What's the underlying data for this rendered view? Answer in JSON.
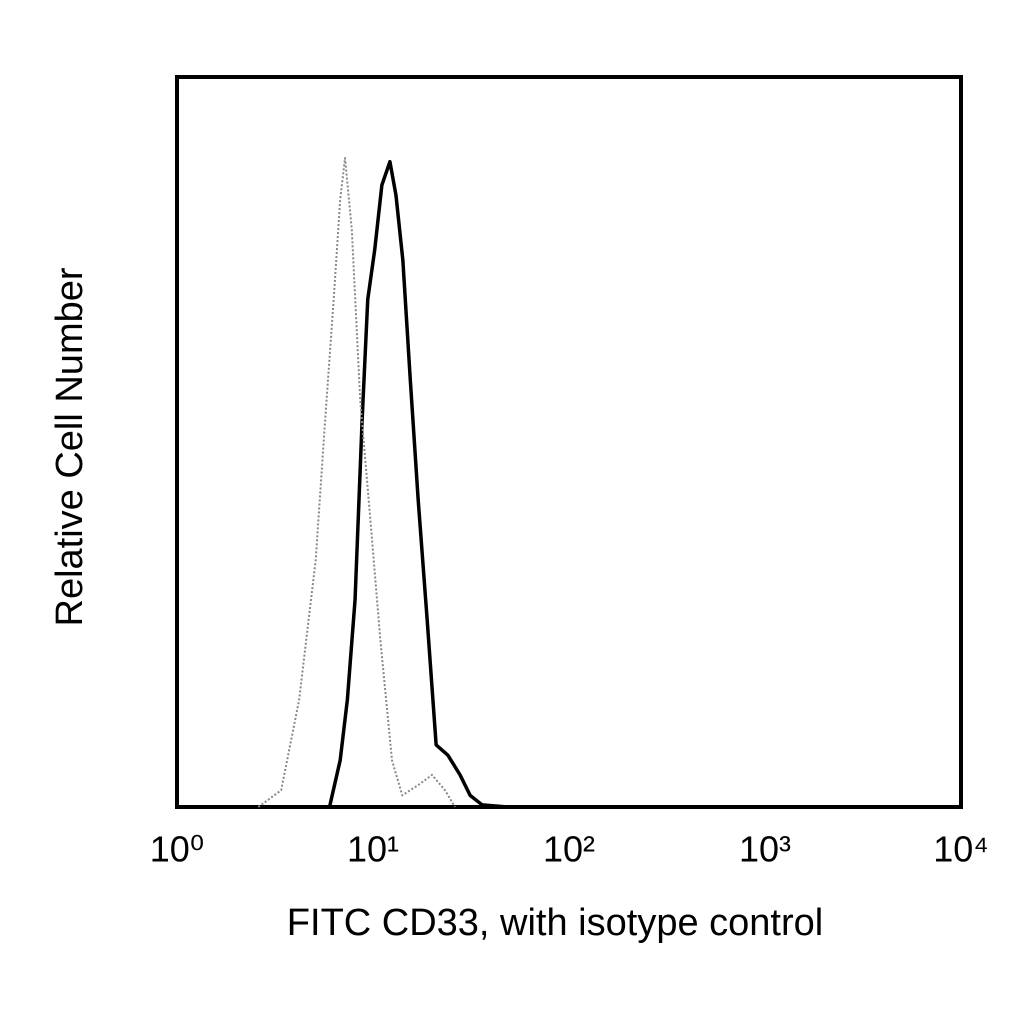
{
  "chart_data": {
    "type": "line",
    "xlabel": "FITC CD33, with isotype control",
    "ylabel": "Relative Cell Number",
    "log_x": true,
    "xlim": [
      1,
      10000
    ],
    "xticks": [
      {
        "value": 1,
        "label": "10⁰"
      },
      {
        "value": 10,
        "label": "10¹"
      },
      {
        "value": 100,
        "label": "10²"
      },
      {
        "value": 1000,
        "label": "10³"
      },
      {
        "value": 10000,
        "label": "10⁴"
      }
    ],
    "ylim": [
      0,
      100
    ],
    "grid": false,
    "series": [
      {
        "color": "#000000",
        "dashed": false,
        "x": [
          6.0,
          6.8,
          7.4,
          8.1,
          8.8,
          9.4,
          10.2,
          11.1,
          12.2,
          13.1,
          14.2,
          15.5,
          17.0,
          18.9,
          21.0,
          24.1,
          27.8,
          31.3,
          36.0,
          48.8
        ],
        "values": [
          0,
          6.4,
          14.7,
          28.4,
          53,
          69.5,
          76.3,
          85.2,
          88.4,
          83.8,
          74.9,
          58.5,
          42.1,
          25.6,
          8.5,
          7.1,
          4.4,
          1.6,
          0.3,
          0
        ]
      },
      {
        "color": "#888888",
        "dashed": true,
        "x": [
          2.6,
          3.4,
          4.2,
          5.1,
          5.7,
          6.3,
          6.8,
          7.2,
          7.8,
          8.6,
          9.7,
          10.9,
          12.5,
          14.1,
          17.0,
          20.0,
          23.3,
          26.2
        ],
        "values": [
          0,
          2.3,
          14.7,
          33.8,
          53,
          69.5,
          83.2,
          88.9,
          79,
          55.8,
          39.3,
          22.9,
          6.4,
          1.6,
          3.0,
          4.4,
          2.3,
          0
        ]
      }
    ]
  }
}
